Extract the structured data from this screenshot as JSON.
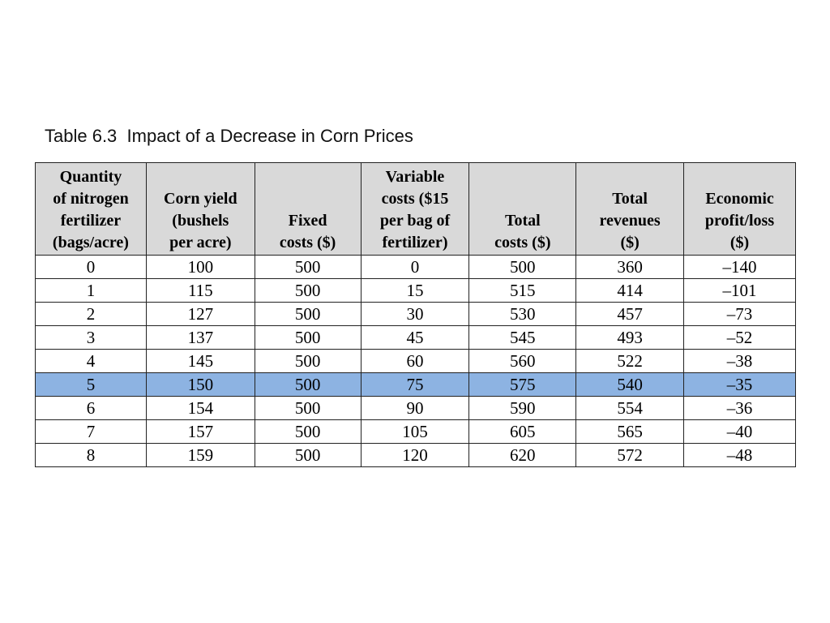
{
  "caption": "Table 6.3  Impact of a Decrease in Corn Prices",
  "table": {
    "headers": [
      [
        "Quantity",
        "of nitrogen",
        "fertilizer",
        "(bags/acre)"
      ],
      [
        "Corn yield",
        "(bushels",
        "per acre)"
      ],
      [
        "Fixed",
        "costs ($)"
      ],
      [
        "Variable",
        "costs ($15",
        "per bag of",
        "fertilizer)"
      ],
      [
        "Total",
        "costs ($)"
      ],
      [
        "Total",
        "revenues",
        "($)"
      ],
      [
        "Economic",
        "profit/loss",
        "($)"
      ]
    ],
    "rows": [
      [
        "0",
        "100",
        "500",
        "0",
        "500",
        "360",
        "–140"
      ],
      [
        "1",
        "115",
        "500",
        "15",
        "515",
        "414",
        "–101"
      ],
      [
        "2",
        "127",
        "500",
        "30",
        "530",
        "457",
        "–73"
      ],
      [
        "3",
        "137",
        "500",
        "45",
        "545",
        "493",
        "–52"
      ],
      [
        "4",
        "145",
        "500",
        "60",
        "560",
        "522",
        "–38"
      ],
      [
        "5",
        "150",
        "500",
        "75",
        "575",
        "540",
        "–35"
      ],
      [
        "6",
        "154",
        "500",
        "90",
        "590",
        "554",
        "–36"
      ],
      [
        "7",
        "157",
        "500",
        "105",
        "605",
        "565",
        "–40"
      ],
      [
        "8",
        "159",
        "500",
        "120",
        "620",
        "572",
        "–48"
      ]
    ],
    "highlighted_row_index": 5,
    "header_background": "#d9d9d9",
    "highlight_color": "#8db3e2"
  }
}
